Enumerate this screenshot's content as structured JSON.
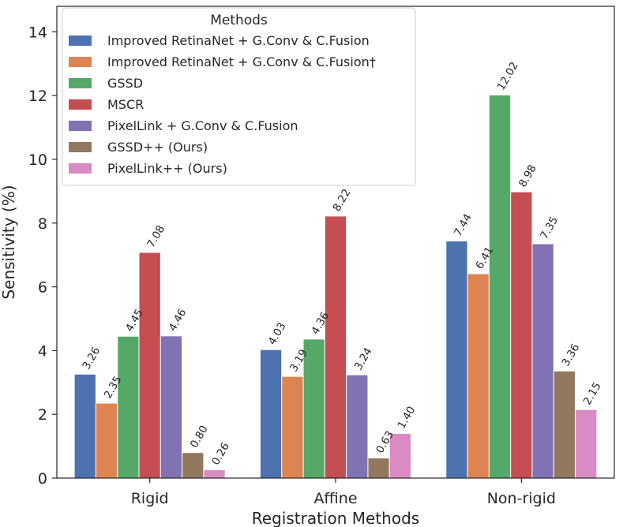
{
  "chart_data": {
    "type": "bar",
    "categories": [
      "Rigid",
      "Affine",
      "Non-rigid"
    ],
    "xlabel": "Registration Methods",
    "ylabel": "Sensitivity (%)",
    "ylim": [
      0,
      14.8
    ],
    "yticks": [
      0,
      2,
      4,
      6,
      8,
      10,
      12,
      14
    ],
    "grid": false,
    "legend_title": "Methods",
    "legend_position": "top-left",
    "series": [
      {
        "name": "Improved RetinaNet + G.Conv & C.Fusion",
        "color": "#4c72b0",
        "values": [
          3.26,
          4.03,
          7.44
        ],
        "labels": [
          "3.26",
          "4.03",
          "7.44"
        ]
      },
      {
        "name": "Improved RetinaNet + G.Conv & C.Fusion†",
        "color": "#dd8452",
        "values": [
          2.35,
          3.19,
          6.41
        ],
        "labels": [
          "2.35",
          "3.19",
          "6.41"
        ]
      },
      {
        "name": "GSSD",
        "color": "#55a868",
        "values": [
          4.45,
          4.36,
          12.02
        ],
        "labels": [
          "4.45",
          "4.36",
          "12.02"
        ]
      },
      {
        "name": "MSCR",
        "color": "#c44e52",
        "values": [
          7.08,
          8.22,
          8.98
        ],
        "labels": [
          "7.08",
          "8.22",
          "8.98"
        ]
      },
      {
        "name": "PixelLink + G.Conv & C.Fusion",
        "color": "#8172b3",
        "values": [
          4.46,
          3.24,
          7.35
        ],
        "labels": [
          "4.46",
          "3.24",
          "7.35"
        ]
      },
      {
        "name": "GSSD++ (Ours)",
        "color": "#937860",
        "values": [
          0.8,
          0.63,
          3.36
        ],
        "labels": [
          "0.80",
          "0.63",
          "3.36"
        ]
      },
      {
        "name": "PixelLink++ (Ours)",
        "color": "#da8bc3",
        "values": [
          0.26,
          1.4,
          2.15
        ],
        "labels": [
          "0.26",
          "1.40",
          "2.15"
        ]
      }
    ]
  }
}
